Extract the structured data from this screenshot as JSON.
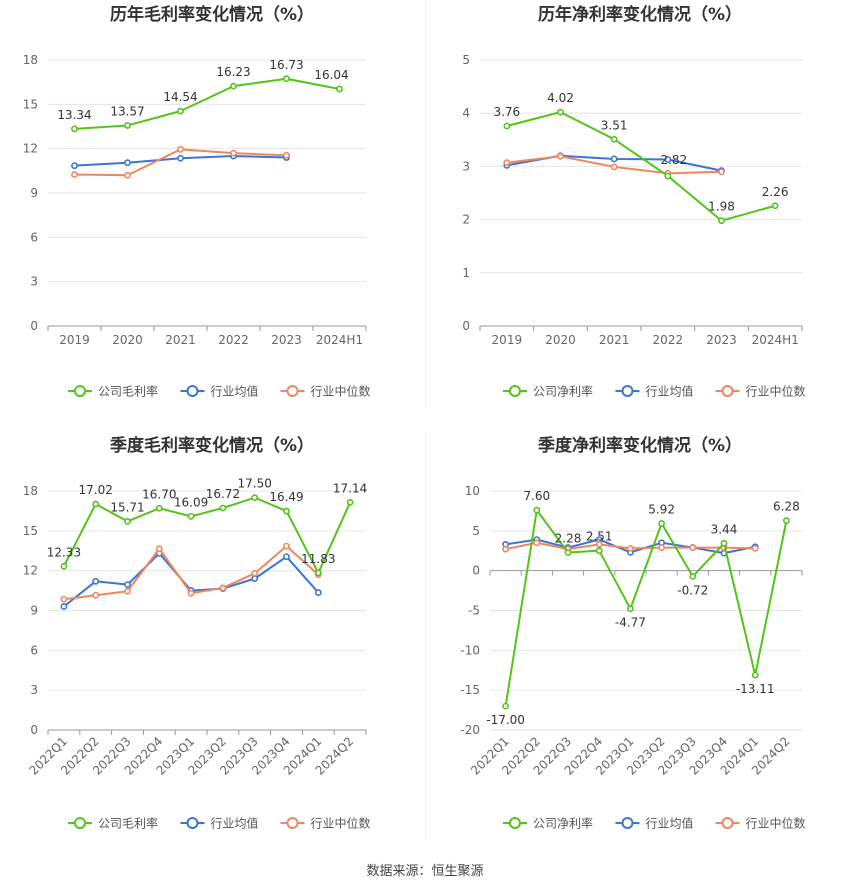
{
  "colors": {
    "company": "#52c41a",
    "avg": "#3a75d8",
    "median": "#f08660",
    "grid": "#e6e6e6",
    "axis": "#999999",
    "text": "#333333"
  },
  "source": "数据来源：恒生聚源",
  "chart_data": [
    {
      "type": "line",
      "title": "历年毛利率变化情况（%）",
      "categories": [
        "2019",
        "2020",
        "2021",
        "2022",
        "2023",
        "2024H1"
      ],
      "ylim": [
        0,
        18
      ],
      "yticks": [
        0,
        3,
        6,
        9,
        12,
        15,
        18
      ],
      "rotate_x": false,
      "legend": "bottom",
      "series": [
        {
          "name": "公司毛利率",
          "role": "company",
          "values": [
            13.34,
            13.57,
            14.54,
            16.23,
            16.73,
            16.04
          ],
          "labels": [
            "13.34",
            "13.57",
            "14.54",
            "16.23",
            "16.73",
            "16.04"
          ]
        },
        {
          "name": "行业均值",
          "role": "avg",
          "values": [
            10.85,
            11.05,
            11.35,
            11.5,
            11.4,
            null
          ]
        },
        {
          "name": "行业中位数",
          "role": "median",
          "values": [
            10.25,
            10.2,
            11.95,
            11.7,
            11.55,
            null
          ]
        }
      ]
    },
    {
      "type": "line",
      "title": "历年净利率变化情况（%）",
      "categories": [
        "2019",
        "2020",
        "2021",
        "2022",
        "2023",
        "2024H1"
      ],
      "ylim": [
        0,
        5
      ],
      "yticks": [
        0,
        1,
        2,
        3,
        4,
        5
      ],
      "rotate_x": false,
      "legend": "bottom",
      "series": [
        {
          "name": "公司净利率",
          "role": "company",
          "values": [
            3.76,
            4.02,
            3.51,
            2.82,
            1.98,
            2.26
          ],
          "labels": [
            "3.76",
            "4.02",
            "3.51",
            "2.82",
            "1.98",
            "2.26"
          ]
        },
        {
          "name": "行业均值",
          "role": "avg",
          "values": [
            3.02,
            3.2,
            3.14,
            3.13,
            2.92,
            null
          ]
        },
        {
          "name": "行业中位数",
          "role": "median",
          "values": [
            3.07,
            3.19,
            2.99,
            2.87,
            2.9,
            null
          ]
        }
      ]
    },
    {
      "type": "line",
      "title": "季度毛利率变化情况（%）",
      "categories": [
        "2022Q1",
        "2022Q2",
        "2022Q3",
        "2022Q4",
        "2023Q1",
        "2023Q2",
        "2023Q3",
        "2023Q4",
        "2024Q1",
        "2024Q2"
      ],
      "ylim": [
        0,
        18
      ],
      "yticks": [
        0,
        3,
        6,
        9,
        12,
        15,
        18
      ],
      "rotate_x": true,
      "legend": "bottom",
      "series": [
        {
          "name": "公司毛利率",
          "role": "company",
          "values": [
            12.33,
            17.02,
            15.71,
            16.7,
            16.09,
            16.72,
            17.5,
            16.49,
            11.83,
            17.14
          ],
          "labels": [
            "12.33",
            "17.02",
            "15.71",
            "16.70",
            "16.09",
            "16.72",
            "17.50",
            "16.49",
            "11.83",
            "17.14"
          ]
        },
        {
          "name": "行业均值",
          "role": "avg",
          "values": [
            9.3,
            11.2,
            10.95,
            13.3,
            10.5,
            10.65,
            11.4,
            13.05,
            10.35,
            null
          ]
        },
        {
          "name": "行业中位数",
          "role": "median",
          "values": [
            9.85,
            10.15,
            10.45,
            13.65,
            10.3,
            10.7,
            11.8,
            13.85,
            11.7,
            null
          ]
        }
      ]
    },
    {
      "type": "line",
      "title": "季度净利率变化情况（%）",
      "categories": [
        "2022Q1",
        "2022Q2",
        "2022Q3",
        "2022Q4",
        "2023Q1",
        "2023Q2",
        "2023Q3",
        "2023Q4",
        "2024Q1",
        "2024Q2"
      ],
      "ylim": [
        -20,
        10
      ],
      "yticks": [
        -20,
        -15,
        -10,
        -5,
        0,
        5,
        10
      ],
      "rotate_x": true,
      "legend": "bottom",
      "series": [
        {
          "name": "公司净利率",
          "role": "company",
          "values": [
            -17.0,
            7.6,
            2.28,
            2.51,
            -4.77,
            5.92,
            -0.72,
            3.44,
            -13.11,
            6.28
          ],
          "labels": [
            "-17.00",
            "7.60",
            "2.28",
            "2.51",
            "-4.77",
            "5.92",
            "-0.72",
            "3.44",
            "-13.11",
            "6.28"
          ]
        },
        {
          "name": "行业均值",
          "role": "avg",
          "values": [
            3.3,
            3.9,
            2.9,
            3.9,
            2.3,
            3.5,
            2.9,
            2.2,
            3.0,
            null
          ]
        },
        {
          "name": "行业中位数",
          "role": "median",
          "values": [
            2.7,
            3.5,
            2.7,
            3.3,
            2.8,
            2.9,
            2.9,
            2.9,
            2.8,
            null
          ]
        }
      ]
    }
  ]
}
